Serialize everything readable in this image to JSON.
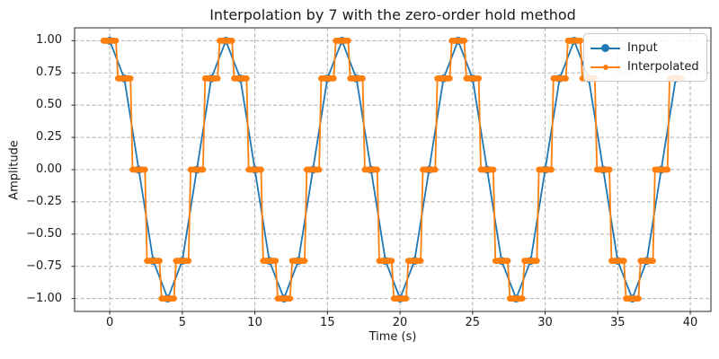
{
  "title": "Interpolation by 7 with the zero-order hold method",
  "legend": {
    "position": "upper right",
    "entries": [
      {
        "label": "Input",
        "color": "#1f77b4",
        "marker": "circle-large"
      },
      {
        "label": "Interpolated",
        "color": "#ff7f0e",
        "marker": "dot-small"
      }
    ]
  },
  "chart_data": {
    "type": "line",
    "title": "Interpolation by 7 with the zero-order hold method",
    "xlabel": "Time (s)",
    "ylabel": "Amplitude",
    "xlim": [
      -2.4214,
      41.4214
    ],
    "ylim": [
      -1.1,
      1.1
    ],
    "grid": {
      "visible": true,
      "line_style": "dashed",
      "color": "#b0b0b0"
    },
    "xticks": [
      {
        "value": 0,
        "label": "0"
      },
      {
        "value": 5,
        "label": "5"
      },
      {
        "value": 10,
        "label": "10"
      },
      {
        "value": 15,
        "label": "15"
      },
      {
        "value": 20,
        "label": "20"
      },
      {
        "value": 25,
        "label": "25"
      },
      {
        "value": 30,
        "label": "30"
      },
      {
        "value": 35,
        "label": "35"
      },
      {
        "value": 40,
        "label": "40"
      }
    ],
    "yticks": [
      {
        "value": 1.0,
        "label": "1.00"
      },
      {
        "value": 0.75,
        "label": "0.75"
      },
      {
        "value": 0.5,
        "label": "0.50"
      },
      {
        "value": 0.25,
        "label": "0.25"
      },
      {
        "value": 0.0,
        "label": "0.00"
      },
      {
        "value": -0.25,
        "label": "−0.25"
      },
      {
        "value": -0.5,
        "label": "−0.50"
      },
      {
        "value": -0.75,
        "label": "−0.75"
      },
      {
        "value": -1.0,
        "label": "−1.00"
      }
    ],
    "series": [
      {
        "name": "Input",
        "color": "#1f77b4",
        "style": "line-with-circle-markers",
        "x": [
          0,
          1,
          2,
          3,
          4,
          5,
          6,
          7,
          8,
          9,
          10,
          11,
          12,
          13,
          14,
          15,
          16,
          17,
          18,
          19,
          20,
          21,
          22,
          23,
          24,
          25,
          26,
          27,
          28,
          29,
          30,
          31,
          32,
          33,
          34,
          35,
          36,
          37,
          38,
          39
        ],
        "values": [
          1,
          0.7071,
          0,
          -0.7071,
          -1,
          -0.7071,
          0,
          0.7071,
          1,
          0.7071,
          0,
          -0.7071,
          -1,
          -0.7071,
          0,
          0.7071,
          1,
          0.7071,
          0,
          -0.7071,
          -1,
          -0.7071,
          0,
          0.7071,
          1,
          0.7071,
          0,
          -0.7071,
          -1,
          -0.7071,
          0,
          0.7071,
          1,
          0.7071,
          0,
          -0.7071,
          -1,
          -0.7071,
          0,
          0.7071
        ]
      },
      {
        "name": "Interpolated",
        "color": "#ff7f0e",
        "style": "zero-order-hold-with-dot-markers",
        "method": "zero-order hold",
        "upsample_factor": 7,
        "hold_centered_on_sample": true,
        "hold_half_width": 0.4286,
        "values": [
          1,
          0.7071,
          0,
          -0.7071,
          -1,
          -0.7071,
          0,
          0.7071,
          1,
          0.7071,
          0,
          -0.7071,
          -1,
          -0.7071,
          0,
          0.7071,
          1,
          0.7071,
          0,
          -0.7071,
          -1,
          -0.7071,
          0,
          0.7071,
          1,
          0.7071,
          0,
          -0.7071,
          -1,
          -0.7071,
          0,
          0.7071,
          1,
          0.7071,
          0,
          -0.7071,
          -1,
          -0.7071,
          0,
          0.7071
        ]
      }
    ]
  }
}
